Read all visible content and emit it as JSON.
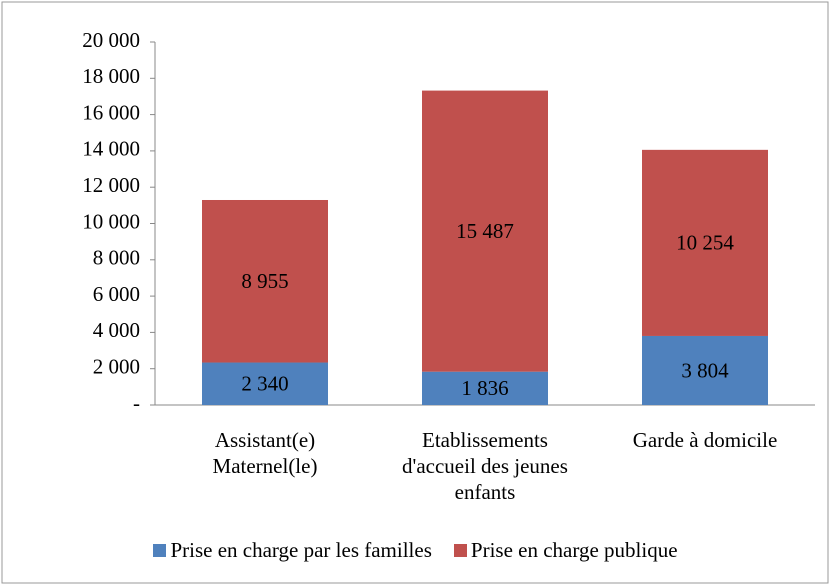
{
  "chart_data": {
    "type": "stacked_bar",
    "categories": [
      "Assistant(e) Maternel(le)",
      "Etablissements d'accueil des jeunes enfants",
      "Garde à domicile"
    ],
    "series": [
      {
        "name": "Prise en charge par les familles",
        "color": "#4f81bd",
        "values": [
          2340,
          1836,
          3804
        ],
        "value_labels": [
          "2 340",
          "1 836",
          "3 804"
        ]
      },
      {
        "name": "Prise en charge publique",
        "color": "#c0504d",
        "values": [
          8955,
          15487,
          10254
        ],
        "value_labels": [
          "8 955",
          "15 487",
          "10 254"
        ]
      }
    ],
    "ylim": [
      0,
      20000
    ],
    "yticks": [
      {
        "value": 0,
        "label": "-"
      },
      {
        "value": 2000,
        "label": "2 000"
      },
      {
        "value": 4000,
        "label": "4 000"
      },
      {
        "value": 6000,
        "label": "6 000"
      },
      {
        "value": 8000,
        "label": "8 000"
      },
      {
        "value": 10000,
        "label": "10 000"
      },
      {
        "value": 12000,
        "label": "12 000"
      },
      {
        "value": 14000,
        "label": "14 000"
      },
      {
        "value": 16000,
        "label": "16 000"
      },
      {
        "value": 18000,
        "label": "18 000"
      },
      {
        "value": 20000,
        "label": "20 000"
      }
    ],
    "legend": "bottom"
  }
}
